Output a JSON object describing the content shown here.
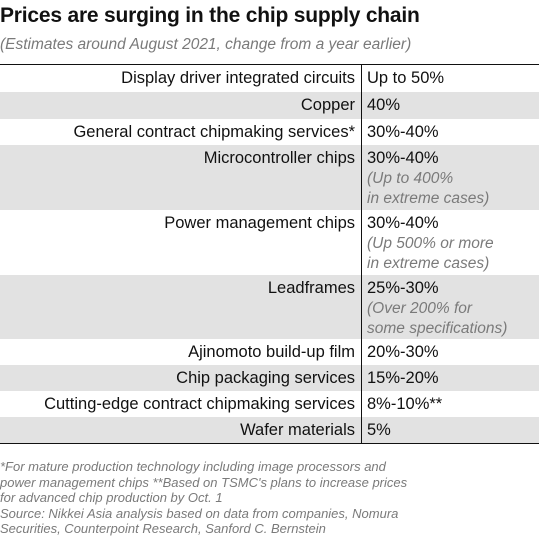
{
  "header": {
    "title": "Prices are surging in the chip supply chain",
    "subtitle": "(Estimates around August 2021, change from a year earlier)"
  },
  "table": {
    "rows": [
      {
        "label": "Display driver integrated circuits",
        "value": "Up to 50%",
        "note": ""
      },
      {
        "label": "Copper",
        "value": "40%",
        "note": ""
      },
      {
        "label": "General contract chipmaking services*",
        "value": "30%-40%",
        "note": ""
      },
      {
        "label": "Microcontroller chips",
        "value": "30%-40%",
        "note": "(Up to 400%\nin extreme cases)"
      },
      {
        "label": "Power management chips",
        "value": "30%-40%",
        "note": "(Up 500% or more\nin extreme cases)"
      },
      {
        "label": "Leadframes",
        "value": "25%-30%",
        "note": "(Over 200% for\nsome specifications)"
      },
      {
        "label": "Ajinomoto build-up film",
        "value": "20%-30%",
        "note": ""
      },
      {
        "label": "Chip packaging services",
        "value": "15%-20%",
        "note": ""
      },
      {
        "label": "Cutting-edge contract chipmaking services",
        "value": "8%-10%**",
        "note": ""
      },
      {
        "label": "Wafer materials",
        "value": "5%",
        "note": ""
      }
    ]
  },
  "footnotes": {
    "notes": "*For mature production technology including image processors and\npower management chips  **Based on TSMC's plans to increase prices\nfor advanced chip production by Oct. 1",
    "source": "Source: Nikkei Asia analysis based on data from companies, Nomura\nSecurities, Counterpoint Research, Sanford C. Bernstein"
  }
}
